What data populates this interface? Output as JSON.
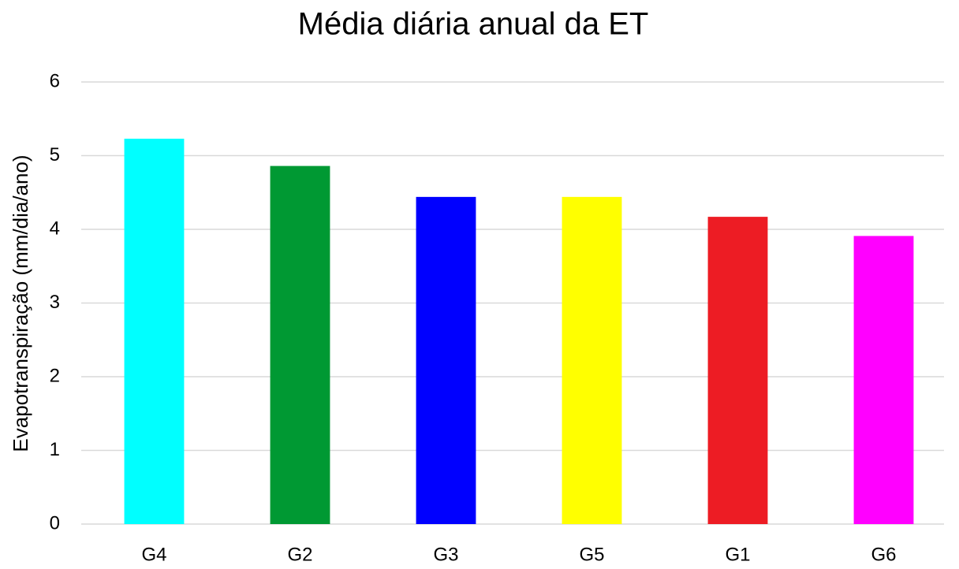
{
  "chart_data": {
    "type": "bar",
    "title": "Média diária anual da ET",
    "y_label": "Evapotranspiração (mm/dia/ano)",
    "categories": [
      "G4",
      "G2",
      "G3",
      "G5",
      "G1",
      "G6"
    ],
    "values": [
      5.23,
      4.86,
      4.44,
      4.44,
      4.17,
      3.91
    ],
    "colors": [
      "#00ffff",
      "#009933",
      "#0000ff",
      "#ffff00",
      "#ed1c24",
      "#ff00ff"
    ],
    "ylim": [
      0,
      6
    ],
    "yticks": [
      0,
      1,
      2,
      3,
      4,
      5,
      6
    ],
    "grid": true
  }
}
